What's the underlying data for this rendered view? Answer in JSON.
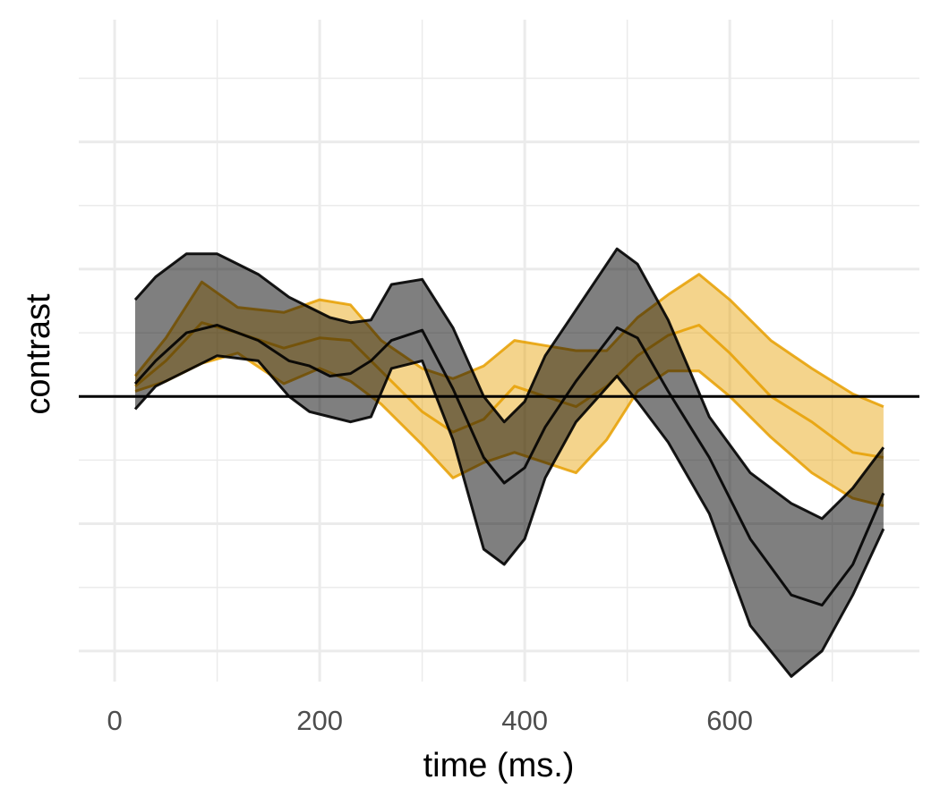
{
  "chart_data": {
    "type": "area",
    "xlabel": "time (ms.)",
    "ylabel": "contrast",
    "xlim": [
      -35,
      785
    ],
    "ylim": [
      -1.12,
      1.48
    ],
    "x_ticks": [
      0,
      200,
      400,
      600
    ],
    "x_tick_labels": [
      "0",
      "200",
      "400",
      "600"
    ],
    "y_major_gridlines": [
      -1.0,
      -0.5,
      0.0,
      0.5,
      1.0
    ],
    "y_minor_gridlines": [
      -0.75,
      -0.25,
      0.25,
      0.75,
      1.25
    ],
    "x_minor_gridlines": [
      100,
      300,
      500,
      700
    ],
    "y_tick_labels_shown": false,
    "reference_line_y": 0,
    "grid": true,
    "legend": "none",
    "series": [
      {
        "color": "#E69F00",
        "x": [
          20,
          50,
          85,
          120,
          165,
          200,
          230,
          260,
          300,
          330,
          360,
          390,
          420,
          450,
          480,
          510,
          540,
          570,
          600,
          640,
          680,
          720,
          750
        ],
        "mean": [
          0.04,
          0.14,
          0.29,
          0.25,
          0.19,
          0.23,
          0.22,
          0.1,
          -0.06,
          -0.14,
          -0.09,
          0.04,
          0.0,
          -0.04,
          0.04,
          0.16,
          0.24,
          0.28,
          0.17,
          0.0,
          -0.1,
          -0.22,
          -0.24
        ],
        "lower": [
          0.02,
          0.06,
          0.13,
          0.17,
          0.05,
          0.11,
          0.06,
          -0.03,
          -0.19,
          -0.32,
          -0.26,
          -0.22,
          -0.26,
          -0.3,
          -0.17,
          0.02,
          0.1,
          0.1,
          0.0,
          -0.16,
          -0.3,
          -0.4,
          -0.43
        ],
        "upper": [
          0.08,
          0.23,
          0.45,
          0.35,
          0.33,
          0.38,
          0.36,
          0.22,
          0.11,
          0.07,
          0.12,
          0.22,
          0.2,
          0.18,
          0.18,
          0.31,
          0.4,
          0.48,
          0.38,
          0.22,
          0.11,
          0.01,
          -0.04
        ]
      },
      {
        "color": "#000000",
        "x": [
          20,
          40,
          70,
          100,
          140,
          170,
          190,
          210,
          230,
          250,
          270,
          300,
          330,
          360,
          380,
          400,
          420,
          450,
          490,
          510,
          540,
          580,
          620,
          660,
          690,
          720,
          750
        ],
        "mean": [
          0.05,
          0.14,
          0.25,
          0.28,
          0.22,
          0.14,
          0.12,
          0.08,
          0.09,
          0.14,
          0.22,
          0.26,
          0.03,
          -0.24,
          -0.34,
          -0.28,
          -0.12,
          0.06,
          0.27,
          0.23,
          0.02,
          -0.24,
          -0.56,
          -0.78,
          -0.82,
          -0.66,
          -0.38
        ],
        "lower": [
          -0.05,
          0.04,
          0.1,
          0.16,
          0.14,
          0.0,
          -0.06,
          -0.08,
          -0.1,
          -0.08,
          0.11,
          0.14,
          -0.17,
          -0.6,
          -0.66,
          -0.56,
          -0.32,
          -0.1,
          0.08,
          -0.02,
          -0.18,
          -0.46,
          -0.9,
          -1.1,
          -1.0,
          -0.78,
          -0.52
        ],
        "upper": [
          0.38,
          0.47,
          0.56,
          0.56,
          0.48,
          0.39,
          0.35,
          0.31,
          0.29,
          0.3,
          0.44,
          0.46,
          0.27,
          0.0,
          -0.1,
          -0.02,
          0.16,
          0.34,
          0.58,
          0.52,
          0.3,
          -0.08,
          -0.3,
          -0.42,
          -0.48,
          -0.36,
          -0.2
        ]
      }
    ]
  }
}
